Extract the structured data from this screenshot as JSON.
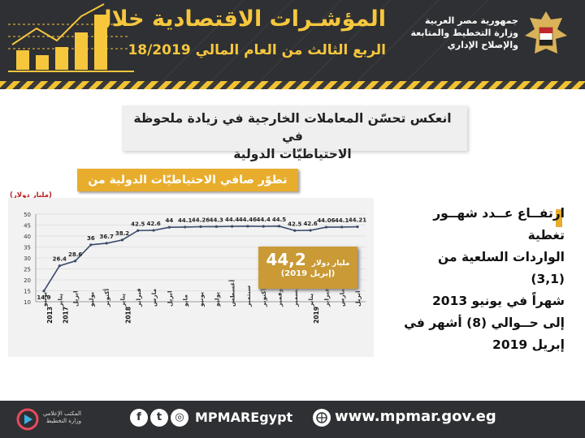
{
  "header": {
    "title": "المؤشـرات الاقتصادية خلال",
    "subtitle": "الربع الثالث من العام المالي 18/2019",
    "ministry_lines": [
      "جمهورية مصر العربية",
      "وزارة التخطيط والمتابعة",
      "والإصلاح الإداري"
    ]
  },
  "headline": {
    "line1": "انعكس تحسّن المعاملات الخارجية في زيادة ملحوظة في",
    "line2": "الاحتياطيّات الدولية"
  },
  "chart_data": {
    "type": "line",
    "title": "تطوّر صافي الاحتياطيّات الدولية من النقد الأجنبي",
    "ylabel": "(مليار دولار)",
    "ylim": [
      10,
      50
    ],
    "yticks": [
      10,
      15,
      20,
      25,
      30,
      35,
      40,
      45,
      50
    ],
    "grid": true,
    "categories": [
      "يونيو",
      "يناير",
      "ابريل",
      "يوليو",
      "أكتوبر",
      "يناير",
      "فبراير",
      "مارس",
      "ابريل",
      "مايو",
      "يونيو",
      "يوليو",
      "أغسطس",
      "سبتمبر",
      "أكتوبر",
      "نوفمبر",
      "ديسمبر",
      "يناير",
      "فبراير",
      "مارس",
      "ابريل"
    ],
    "year_labels": [
      {
        "index": 0,
        "year": "2013"
      },
      {
        "index": 1,
        "year": "2017"
      },
      {
        "index": 5,
        "year": "2018"
      },
      {
        "index": 17,
        "year": "2019"
      }
    ],
    "values": [
      14.9,
      26.4,
      28.6,
      36,
      36.7,
      38.2,
      42.5,
      42.6,
      44,
      44.1,
      44.26,
      44.3,
      44.4,
      44.46,
      44.4,
      44.5,
      42.5,
      42.6,
      44.06,
      44.1,
      44.21
    ],
    "value_labels": [
      "14.9",
      "26.4",
      "28.6",
      "36",
      "36.7",
      "38.2",
      "42.5",
      "42.6",
      "44",
      "44.1",
      "44.26",
      "44.3",
      "44.4",
      "44.46",
      "44.4",
      "44.5",
      "42.5",
      "42.6",
      "44.06",
      "44.1",
      "44.21"
    ],
    "line_color": "#3a4a6b"
  },
  "callout": {
    "value": "44,2",
    "unit": "مليار دولار",
    "date": "(إبريل 2019)"
  },
  "side_text": [
    "ارتفــاع عــدد شهــور تغطية",
    "الواردات السلعية من (3,1)",
    "شهراً في يونيو 2013",
    "إلى حــوالي (8) أشهر في",
    "إبريل 2019"
  ],
  "footer": {
    "logo_text": "المكتب الإعلامي وزارة التخطيط",
    "handle": "MPMAREgypt",
    "website": "www.mpmar.gov.eg",
    "social_icons": [
      "facebook-icon",
      "twitter-icon",
      "instagram-icon"
    ]
  },
  "colors": {
    "dark": "#2f3033",
    "gold": "#f6c73d",
    "accent": "#e8ad2c",
    "callout": "#c99a35"
  }
}
